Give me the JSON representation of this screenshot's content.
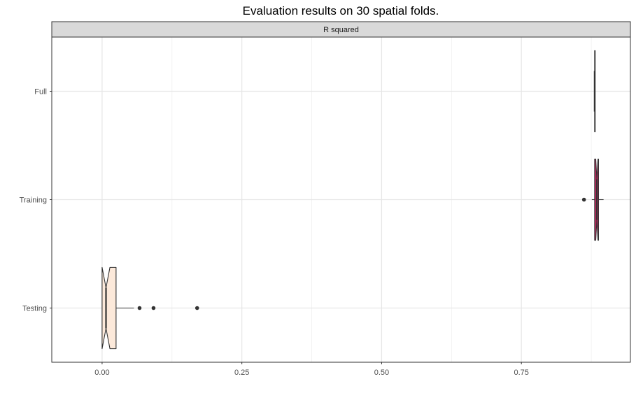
{
  "chart_data": {
    "type": "boxplot",
    "title": "Evaluation results on 30 spatial folds.",
    "facet_label": "R squared",
    "xlim": [
      -0.09,
      0.945
    ],
    "x_ticks": [
      0.0,
      0.25,
      0.5,
      0.75
    ],
    "x_tick_labels": [
      "0.00",
      "0.25",
      "0.50",
      "0.75"
    ],
    "categories": [
      "Full",
      "Training",
      "Testing"
    ],
    "grid": true,
    "series": [
      {
        "category": "Full",
        "min": 0.881,
        "q1": 0.881,
        "median": 0.881,
        "q3": 0.882,
        "max": 0.882,
        "notch_low": 0.881,
        "notch_high": 0.882,
        "outliers": [],
        "fill": "#ffffff"
      },
      {
        "category": "Training",
        "min": 0.876,
        "q1": 0.881,
        "median": 0.885,
        "q3": 0.888,
        "max": 0.897,
        "notch_low": 0.883,
        "notch_high": 0.887,
        "outliers": [
          0.862
        ],
        "fill": "#c0245e"
      },
      {
        "category": "Testing",
        "min": 0.0,
        "q1": 0.0,
        "median": 0.007,
        "q3": 0.025,
        "max": 0.057,
        "notch_low": 0.0,
        "notch_high": 0.014,
        "outliers": [
          0.067,
          0.092,
          0.17
        ],
        "fill": "#fce9da"
      }
    ]
  }
}
